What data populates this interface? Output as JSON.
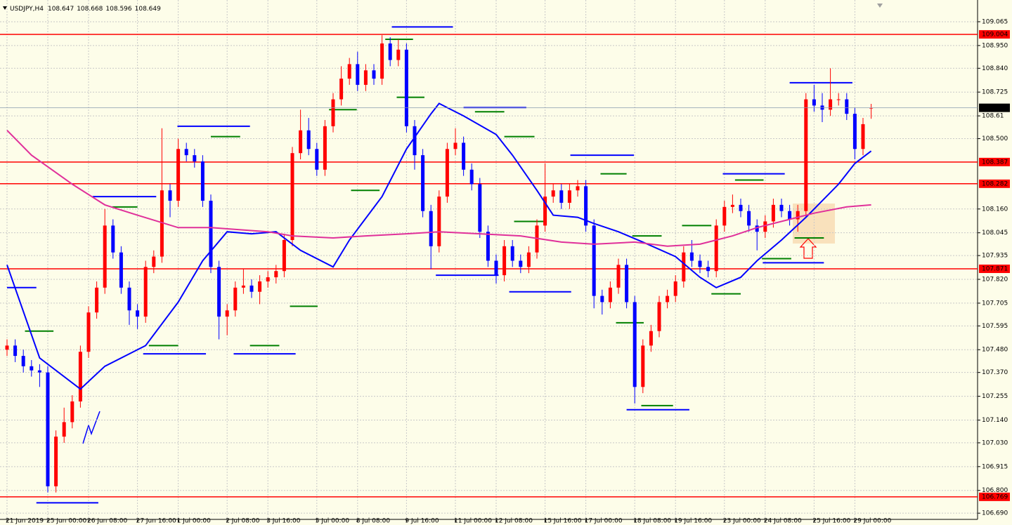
{
  "chart_data": {
    "type": "candlestick",
    "title": "USDJPY,H4",
    "categories": [
      "21 Jun 2019",
      null,
      null,
      null,
      null,
      "25 Jun 00:00",
      null,
      null,
      null,
      null,
      "26 Jun 08:00",
      null,
      null,
      null,
      null,
      null,
      "27 Jun 16:00",
      null,
      null,
      null,
      null,
      "1 Jul 00:00",
      null,
      null,
      null,
      null,
      null,
      "2 Jul 08:00",
      null,
      null,
      null,
      null,
      "3 Jul 16:00",
      null,
      null,
      null,
      null,
      null,
      "5 Jul 00:00",
      null,
      null,
      null,
      null,
      "8 Jul 08:00",
      null,
      null,
      null,
      null,
      null,
      "9 Jul 16:00",
      null,
      null,
      null,
      null,
      null,
      "11 Jul 00:00",
      null,
      null,
      null,
      null,
      "12 Jul 08:00",
      null,
      null,
      null,
      null,
      null,
      "15 Jul 16:00",
      null,
      null,
      null,
      null,
      "17 Jul 00:00",
      null,
      null,
      null,
      null,
      null,
      "18 Jul 08:00",
      null,
      null,
      null,
      null,
      "19 Jul 16:00",
      null,
      null,
      null,
      null,
      null,
      "23 Jul 00:00",
      null,
      null,
      null,
      null,
      "24 Jul 08:00",
      null,
      null,
      null,
      null,
      null,
      "25 Jul 16:00",
      null,
      null,
      null,
      null,
      "29 Jul 00:00",
      null,
      null
    ],
    "open": [
      107.48,
      107.5,
      107.45,
      107.4,
      107.38,
      107.37,
      106.82,
      107.06,
      107.13,
      107.23,
      107.47,
      107.66,
      107.78,
      108.08,
      107.95,
      107.78,
      107.67,
      107.64,
      107.88,
      107.93,
      108.25,
      108.2,
      108.45,
      108.42,
      108.39,
      108.2,
      107.88,
      107.64,
      107.67,
      107.78,
      107.79,
      107.76,
      107.81,
      107.83,
      107.86,
      108.01,
      108.43,
      108.54,
      108.45,
      108.35,
      108.56,
      108.69,
      108.79,
      108.86,
      108.76,
      108.83,
      108.79,
      108.96,
      108.88,
      108.93,
      108.56,
      108.42,
      108.15,
      107.98,
      108.22,
      108.45,
      108.48,
      108.35,
      108.28,
      108.05,
      107.91,
      107.84,
      107.98,
      107.91,
      107.88,
      107.95,
      108.08,
      108.22,
      108.25,
      108.19,
      108.25,
      108.27,
      108.08,
      107.74,
      107.71,
      107.78,
      107.89,
      107.71,
      107.3,
      107.5,
      107.57,
      107.71,
      107.74,
      107.81,
      107.95,
      107.91,
      107.88,
      107.86,
      108.08,
      108.17,
      108.18,
      108.15,
      108.08,
      108.05,
      108.1,
      108.18,
      108.15,
      108.11,
      108.15,
      108.69,
      108.66,
      108.64,
      108.69,
      108.69,
      108.62,
      108.45,
      108.647
    ],
    "high": [
      107.53,
      107.53,
      107.48,
      107.43,
      107.41,
      107.4,
      107.09,
      107.2,
      107.26,
      107.5,
      107.69,
      107.81,
      108.16,
      108.11,
      107.98,
      107.81,
      107.7,
      107.91,
      107.96,
      108.55,
      108.28,
      108.5,
      108.48,
      108.45,
      108.42,
      108.23,
      107.91,
      107.7,
      107.81,
      107.87,
      107.82,
      107.84,
      107.86,
      107.89,
      108.04,
      108.46,
      108.64,
      108.6,
      108.48,
      108.59,
      108.72,
      108.85,
      108.89,
      108.92,
      108.86,
      108.86,
      109.0,
      108.99,
      108.98,
      108.96,
      108.59,
      108.45,
      108.18,
      108.25,
      108.48,
      108.55,
      108.51,
      108.38,
      108.31,
      108.08,
      107.94,
      108.01,
      108.01,
      107.94,
      107.98,
      108.11,
      108.38,
      108.28,
      108.28,
      108.28,
      108.3,
      108.3,
      108.11,
      107.77,
      107.81,
      107.92,
      107.92,
      107.74,
      107.53,
      107.6,
      107.74,
      107.77,
      107.84,
      107.98,
      108.01,
      107.94,
      107.91,
      108.11,
      108.2,
      108.23,
      108.21,
      108.18,
      108.11,
      108.13,
      108.21,
      108.21,
      108.18,
      108.18,
      108.72,
      108.76,
      108.72,
      108.84,
      108.72,
      108.72,
      108.65,
      108.6,
      108.668
    ],
    "low": [
      107.45,
      107.42,
      107.37,
      107.35,
      107.3,
      106.79,
      106.79,
      107.03,
      107.1,
      107.2,
      107.44,
      107.63,
      107.75,
      107.92,
      107.75,
      107.6,
      107.58,
      107.61,
      107.85,
      107.9,
      108.12,
      108.17,
      108.39,
      108.36,
      108.17,
      107.85,
      107.53,
      107.55,
      107.64,
      107.75,
      107.73,
      107.7,
      107.78,
      107.8,
      107.83,
      107.98,
      108.4,
      108.42,
      108.32,
      108.32,
      108.53,
      108.66,
      108.76,
      108.73,
      108.73,
      108.76,
      108.76,
      108.85,
      108.85,
      108.53,
      108.35,
      108.12,
      107.87,
      107.95,
      108.19,
      108.42,
      108.32,
      108.25,
      108.02,
      107.88,
      107.8,
      107.81,
      107.88,
      107.85,
      107.85,
      107.92,
      108.05,
      108.19,
      108.16,
      108.16,
      108.22,
      108.05,
      107.68,
      107.65,
      107.68,
      107.75,
      107.68,
      107.22,
      107.27,
      107.47,
      107.54,
      107.68,
      107.71,
      107.78,
      107.88,
      107.85,
      107.83,
      107.83,
      108.05,
      108.14,
      108.12,
      108.05,
      107.96,
      108.02,
      108.07,
      108.12,
      108.08,
      108.05,
      108.12,
      108.63,
      108.58,
      108.61,
      108.66,
      108.59,
      108.4,
      108.42,
      108.596
    ],
    "close": [
      107.5,
      107.45,
      107.4,
      107.38,
      107.37,
      106.82,
      107.06,
      107.13,
      107.23,
      107.47,
      107.66,
      107.78,
      108.08,
      107.95,
      107.78,
      107.67,
      107.64,
      107.88,
      107.93,
      108.25,
      108.2,
      108.45,
      108.42,
      108.39,
      108.2,
      107.88,
      107.64,
      107.67,
      107.78,
      107.79,
      107.76,
      107.81,
      107.83,
      107.86,
      108.01,
      108.43,
      108.54,
      108.45,
      108.35,
      108.56,
      108.69,
      108.79,
      108.86,
      108.76,
      108.83,
      108.79,
      108.96,
      108.88,
      108.93,
      108.56,
      108.42,
      108.15,
      107.98,
      108.22,
      108.45,
      108.48,
      108.35,
      108.28,
      108.05,
      107.91,
      107.84,
      107.98,
      107.91,
      107.88,
      107.95,
      108.08,
      108.22,
      108.25,
      108.19,
      108.25,
      108.27,
      108.08,
      107.74,
      107.71,
      107.78,
      107.89,
      107.71,
      107.3,
      107.5,
      107.57,
      107.71,
      107.74,
      107.81,
      107.95,
      107.91,
      107.88,
      107.86,
      108.08,
      108.17,
      108.18,
      108.15,
      108.08,
      108.05,
      108.1,
      108.18,
      108.15,
      108.11,
      108.15,
      108.69,
      108.66,
      108.64,
      108.69,
      108.69,
      108.62,
      108.45,
      108.57,
      108.649
    ],
    "up_color": "#ff0000",
    "down_color": "#0000ff",
    "moving_averages": [
      {
        "color": "#0000ff",
        "x": [
          0,
          4,
          9,
          12,
          17,
          21,
          24,
          27,
          30,
          33,
          36,
          40,
          42,
          46,
          49,
          52,
          53,
          56,
          60,
          62,
          65,
          67,
          70,
          72,
          75,
          78,
          82,
          85,
          87,
          90,
          92,
          95,
          98,
          102,
          104,
          106
        ],
        "values": [
          107.89,
          107.44,
          107.29,
          107.4,
          107.5,
          107.71,
          107.91,
          108.05,
          108.04,
          108.05,
          107.96,
          107.88,
          108.01,
          108.22,
          108.45,
          108.62,
          108.67,
          108.61,
          108.52,
          108.42,
          108.25,
          108.13,
          108.12,
          108.09,
          108.05,
          108.0,
          107.93,
          107.83,
          107.78,
          107.83,
          107.91,
          108.01,
          108.12,
          108.28,
          108.38,
          108.44
        ]
      },
      {
        "color": "#e0309a",
        "x": [
          0,
          3,
          8,
          12,
          16,
          21,
          25,
          32,
          35,
          40,
          44,
          49,
          53,
          58,
          63,
          68,
          72,
          77,
          81,
          85,
          89,
          92,
          96,
          99,
          103,
          106
        ],
        "values": [
          108.54,
          108.42,
          108.28,
          108.18,
          108.13,
          108.07,
          108.07,
          108.05,
          108.03,
          108.02,
          108.03,
          108.04,
          108.05,
          108.04,
          108.03,
          108.0,
          107.99,
          108.0,
          107.98,
          107.99,
          108.03,
          108.07,
          108.11,
          108.14,
          108.17,
          108.18
        ]
      }
    ],
    "hlines": [
      109.004,
      108.387,
      108.282,
      107.871,
      106.769
    ],
    "hline_color": "#ff0000",
    "levels": [
      {
        "color": "#0000ff",
        "lines": [
          {
            "from": 0,
            "to": 3.6,
            "price": 107.78
          },
          {
            "from": 3.6,
            "to": 11.2,
            "price": 106.74
          },
          {
            "from": 10.5,
            "to": 18.3,
            "price": 108.22
          },
          {
            "from": 16.7,
            "to": 24.4,
            "price": 107.46
          },
          {
            "from": 20.9,
            "to": 29.8,
            "price": 108.56
          },
          {
            "from": 27.8,
            "to": 35.4,
            "price": 107.46
          },
          {
            "from": 47.2,
            "to": 54.7,
            "price": 109.04
          },
          {
            "from": 52.6,
            "to": 60.3,
            "price": 107.84
          },
          {
            "from": 56.0,
            "to": 63.7,
            "price": 108.65
          },
          {
            "from": 61.6,
            "to": 69.2,
            "price": 107.76
          },
          {
            "from": 69.1,
            "to": 76.9,
            "price": 108.42
          },
          {
            "from": 76.0,
            "to": 83.7,
            "price": 107.19
          },
          {
            "from": 87.8,
            "to": 95.4,
            "price": 108.33
          },
          {
            "from": 92.7,
            "to": 100.2,
            "price": 107.9
          },
          {
            "from": 96.0,
            "to": 103.7,
            "price": 108.77
          }
        ]
      },
      {
        "color": "#008000",
        "lines": [
          {
            "from": 2.2,
            "to": 5.7,
            "price": 107.57
          },
          {
            "from": 12.9,
            "to": 16.0,
            "price": 108.17
          },
          {
            "from": 17.4,
            "to": 21.0,
            "price": 107.5
          },
          {
            "from": 25.0,
            "to": 28.6,
            "price": 108.51
          },
          {
            "from": 29.8,
            "to": 33.4,
            "price": 107.5
          },
          {
            "from": 34.7,
            "to": 38.1,
            "price": 107.69
          },
          {
            "from": 39.5,
            "to": 42.9,
            "price": 108.64
          },
          {
            "from": 42.2,
            "to": 45.7,
            "price": 108.25
          },
          {
            "from": 46.4,
            "to": 49.8,
            "price": 108.98
          },
          {
            "from": 47.8,
            "to": 51.2,
            "price": 108.7
          },
          {
            "from": 57.4,
            "to": 61.0,
            "price": 108.63
          },
          {
            "from": 61.0,
            "to": 64.7,
            "price": 108.51
          },
          {
            "from": 62.2,
            "to": 65.9,
            "price": 108.1
          },
          {
            "from": 72.8,
            "to": 76.0,
            "price": 108.33
          },
          {
            "from": 74.7,
            "to": 78.1,
            "price": 107.61
          },
          {
            "from": 76.7,
            "to": 80.3,
            "price": 108.03
          },
          {
            "from": 77.8,
            "to": 81.7,
            "price": 107.21
          },
          {
            "from": 82.8,
            "to": 86.4,
            "price": 108.08
          },
          {
            "from": 86.4,
            "to": 90.0,
            "price": 107.75
          },
          {
            "from": 89.3,
            "to": 92.8,
            "price": 108.3
          },
          {
            "from": 92.6,
            "to": 96.2,
            "price": 107.92
          },
          {
            "from": 96.6,
            "to": 100.2,
            "price": 108.02
          }
        ]
      }
    ],
    "ylim": [
      106.66,
      109.17
    ],
    "yticks": [
      109.065,
      {
        "value": 108.95,
        "label": "108.950"
      },
      {
        "value": 108.84,
        "label": "108.840"
      },
      108.725,
      108.61,
      {
        "value": 108.5,
        "label": "108.500"
      },
      {
        "value": 108.16,
        "label": "108.160"
      },
      108.045,
      107.935,
      {
        "value": 107.82,
        "label": "107.820"
      },
      107.705,
      107.595,
      {
        "value": 107.48,
        "label": "107.480"
      },
      {
        "value": 107.37,
        "label": "107.370"
      },
      107.255,
      {
        "value": 107.14,
        "label": "107.140"
      },
      {
        "value": 107.03,
        "label": "107.030"
      },
      106.915,
      {
        "value": 106.8,
        "label": "106.800"
      },
      {
        "value": 106.69,
        "label": "106.690"
      }
    ],
    "grid": true
  }
}
